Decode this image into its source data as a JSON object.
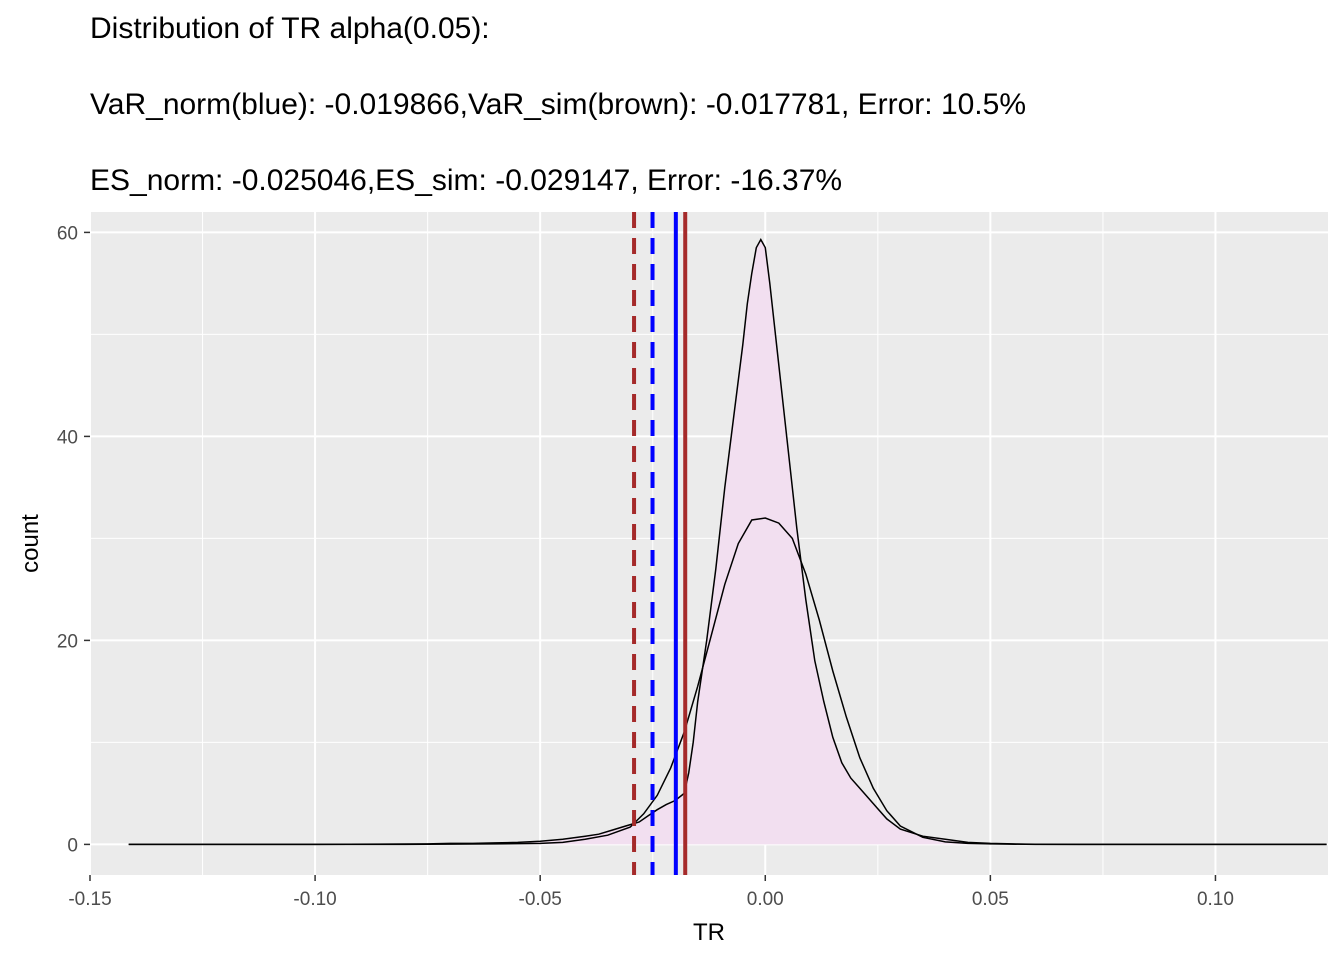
{
  "chart_data": {
    "type": "area",
    "title_lines": [
      "Distribution of TR alpha(0.05):",
      "VaR_norm(blue): -0.019866,VaR_sim(brown): -0.017781, Error: 10.5%",
      "ES_norm: -0.025046,ES_sim: -0.029147, Error: -16.37%"
    ],
    "xlabel": "TR",
    "ylabel": "count",
    "xlim": [
      -0.15,
      0.125
    ],
    "ylim": [
      -3,
      62
    ],
    "xticks": [
      -0.15,
      -0.1,
      -0.05,
      0.0,
      0.05,
      0.1
    ],
    "xtick_labels": [
      "-0.15",
      "-0.10",
      "-0.05",
      "0.00",
      "0.05",
      "0.10"
    ],
    "yticks": [
      0,
      20,
      40,
      60
    ],
    "ytick_labels": [
      "0",
      "20",
      "40",
      "60"
    ],
    "grid": true,
    "colors": {
      "panel": "#ebebeb",
      "grid": "#ffffff",
      "fill": "#f2dff0",
      "curve": "#000000",
      "blue": "#0000ff",
      "brown": "#a52a2a"
    },
    "series": [
      {
        "style": "filled-density",
        "x": [
          -0.1414,
          -0.1,
          -0.075,
          -0.07,
          -0.065,
          -0.06,
          -0.055,
          -0.05,
          -0.045,
          -0.04,
          -0.037,
          -0.034,
          -0.031,
          -0.028,
          -0.026,
          -0.024,
          -0.022,
          -0.02,
          -0.018,
          -0.017,
          -0.016,
          -0.015,
          -0.013,
          -0.011,
          -0.009,
          -0.007,
          -0.005,
          -0.004,
          -0.003,
          -0.002,
          -0.001,
          0.0,
          0.001,
          0.002,
          0.003,
          0.004,
          0.005,
          0.007,
          0.009,
          0.011,
          0.013,
          0.015,
          0.017,
          0.019,
          0.021,
          0.023,
          0.025,
          0.027,
          0.03,
          0.035,
          0.04,
          0.045,
          0.05,
          0.055,
          0.06,
          0.07,
          0.08,
          0.1,
          0.1247
        ],
        "y": [
          0,
          0,
          0.05,
          0.1,
          0.1,
          0.15,
          0.2,
          0.3,
          0.5,
          0.8,
          1.0,
          1.4,
          1.8,
          2.2,
          2.8,
          3.4,
          3.9,
          4.3,
          5.0,
          7.0,
          10.0,
          14.0,
          20.0,
          27.0,
          35.0,
          42.0,
          49.0,
          53.0,
          56.0,
          58.5,
          59.3,
          58.5,
          55.0,
          51.0,
          47.0,
          43.0,
          39.0,
          31.0,
          24.0,
          18.0,
          14.0,
          10.5,
          8.0,
          6.5,
          5.5,
          4.5,
          3.5,
          2.5,
          1.5,
          0.8,
          0.5,
          0.2,
          0.1,
          0.05,
          0.02,
          0,
          0,
          0,
          0
        ]
      },
      {
        "style": "normal-line",
        "x": [
          -0.1414,
          -0.08,
          -0.06,
          -0.05,
          -0.045,
          -0.04,
          -0.035,
          -0.03,
          -0.027,
          -0.024,
          -0.021,
          -0.018,
          -0.015,
          -0.012,
          -0.009,
          -0.006,
          -0.003,
          0.0,
          0.003,
          0.006,
          0.009,
          0.012,
          0.015,
          0.018,
          0.021,
          0.024,
          0.027,
          0.03,
          0.035,
          0.04,
          0.045,
          0.05,
          0.06,
          0.08,
          0.1247
        ],
        "y": [
          0,
          0,
          0.05,
          0.1,
          0.2,
          0.5,
          0.9,
          1.7,
          3.0,
          4.8,
          7.5,
          11.0,
          15.5,
          20.5,
          25.5,
          29.5,
          31.8,
          32.0,
          31.5,
          30.0,
          26.5,
          22.0,
          17.0,
          12.5,
          8.5,
          5.5,
          3.3,
          1.8,
          0.7,
          0.25,
          0.1,
          0.05,
          0,
          0,
          0
        ]
      }
    ],
    "vlines": [
      {
        "x": -0.029147,
        "color": "brown",
        "dash": "dashed"
      },
      {
        "x": -0.025046,
        "color": "blue",
        "dash": "dashed"
      },
      {
        "x": -0.019866,
        "color": "blue",
        "dash": "solid"
      },
      {
        "x": -0.017781,
        "color": "brown",
        "dash": "solid"
      }
    ]
  }
}
